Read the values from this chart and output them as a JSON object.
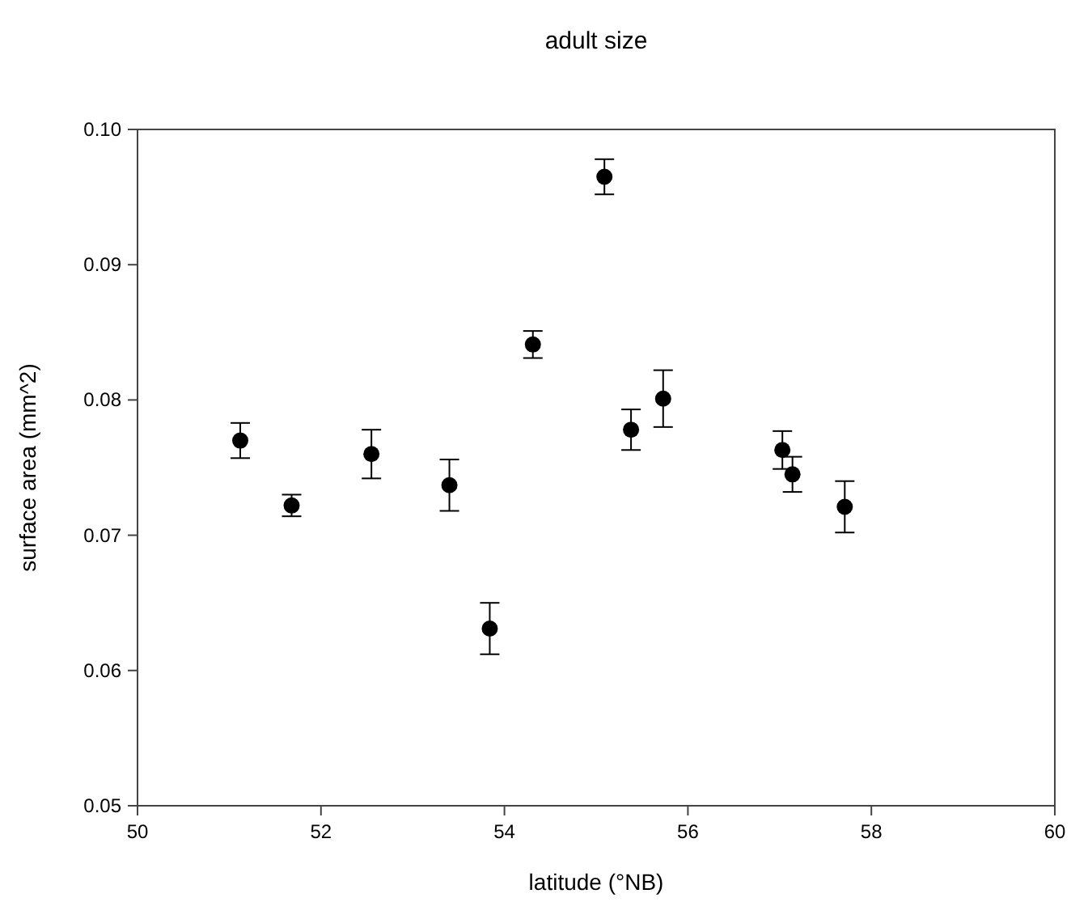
{
  "chart_data": {
    "type": "scatter",
    "title": "adult size",
    "xlabel": "latitude (°NB)",
    "ylabel": "surface area (mm^2)",
    "x": [
      51.12,
      51.68,
      52.55,
      53.4,
      53.84,
      54.31,
      55.09,
      55.38,
      55.73,
      57.03,
      57.14,
      57.71
    ],
    "values": [
      0.077,
      0.0722,
      0.076,
      0.0737,
      0.0631,
      0.0841,
      0.0965,
      0.0778,
      0.0801,
      0.0763,
      0.0745,
      0.0721
    ],
    "errors": [
      0.0013,
      0.0008,
      0.0018,
      0.0019,
      0.0019,
      0.001,
      0.0013,
      0.0015,
      0.0021,
      0.0014,
      0.0013,
      0.0019
    ],
    "color": "#000000",
    "marker": "circle",
    "xlim": [
      50,
      60
    ],
    "xticks": [
      50,
      52,
      54,
      56,
      58,
      60
    ],
    "ylim": [
      0.05,
      0.1
    ],
    "yticks": [
      0.05,
      0.06,
      0.07,
      0.08,
      0.09,
      {
        "value": 0.1,
        "label": "0.10"
      }
    ],
    "grid": false
  }
}
